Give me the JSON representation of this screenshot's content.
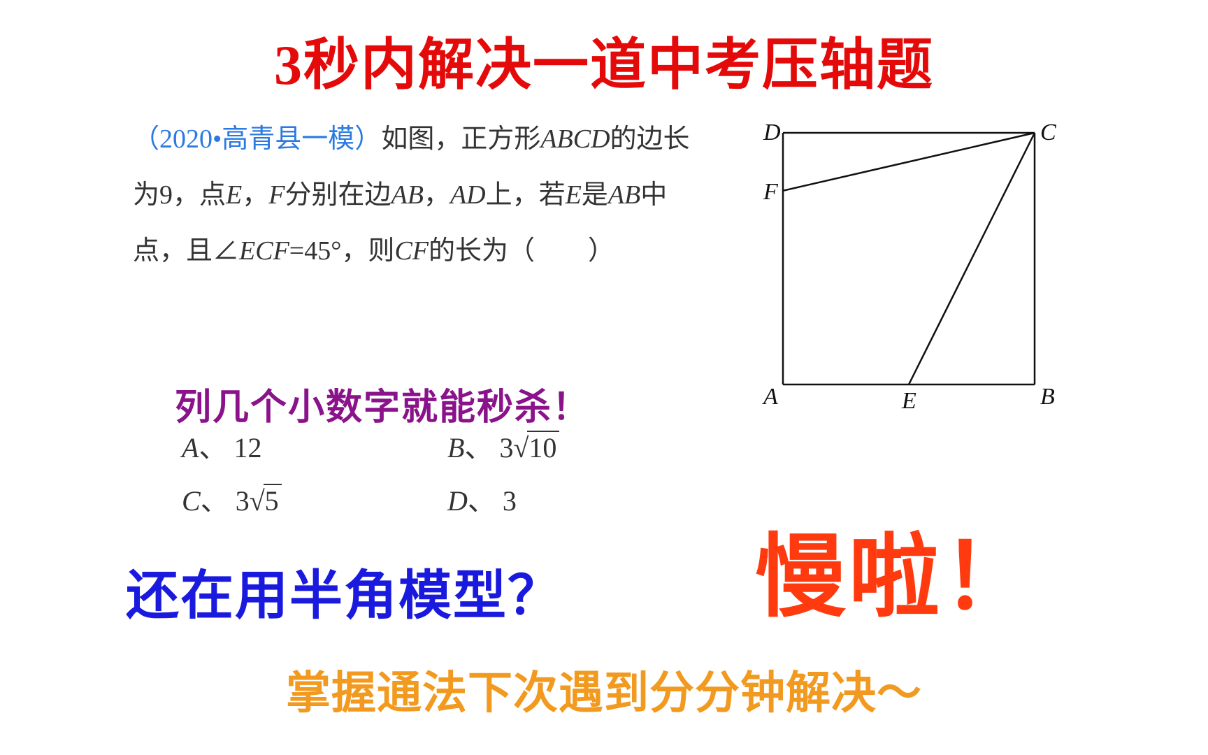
{
  "title": {
    "text": "3秒内解决一道中考压轴题",
    "color": "#e40a0a",
    "fontsize": 80
  },
  "problem": {
    "source_text": "（2020•高青县一模）",
    "source_color": "#2a7ae2",
    "body_part1": "如图，正方形",
    "abcd": "ABCD",
    "body_part2": "的边长为9，点",
    "e": "E",
    "body_part3": "，",
    "f": "F",
    "body_part4": "分别在边",
    "ab": "AB",
    "body_part5": "，",
    "ad": "AD",
    "body_part6": "上，若",
    "e2": "E",
    "body_part7": "是",
    "ab2": "AB",
    "body_part8": "中点，且∠",
    "ecf": "ECF",
    "body_part9": "=45°，则",
    "cf": "CF",
    "body_part10": "的长为（　　）",
    "text_color": "#333333",
    "fontsize": 38
  },
  "diagram": {
    "labels": {
      "A": "A",
      "B": "B",
      "C": "C",
      "D": "D",
      "E": "E",
      "F": "F"
    },
    "stroke": "#111111",
    "size": 360,
    "label_fontsize": 34
  },
  "purple": {
    "text": "列几个小数字就能秒杀！",
    "color": "#8a128a",
    "fontsize": 52
  },
  "choices": {
    "A": {
      "label": "A",
      "sep": "、",
      "value": "12"
    },
    "B": {
      "label": "B",
      "sep": "、",
      "prefix": "3",
      "radicand": "10"
    },
    "C": {
      "label": "C",
      "sep": "、",
      "prefix": "3",
      "radicand": "5"
    },
    "D": {
      "label": "D",
      "sep": "、",
      "value": "3"
    },
    "fontsize": 40,
    "color": "#333333"
  },
  "blue": {
    "text": "还在用半角模型？",
    "color": "#1a1adf",
    "fontsize": 76
  },
  "slow": {
    "text": "慢啦！",
    "color": "#ff3a0f",
    "fontsize": 130
  },
  "orange": {
    "text": "掌握通法下次遇到分分钟解决～",
    "color": "#f29a1f",
    "fontsize": 64
  }
}
